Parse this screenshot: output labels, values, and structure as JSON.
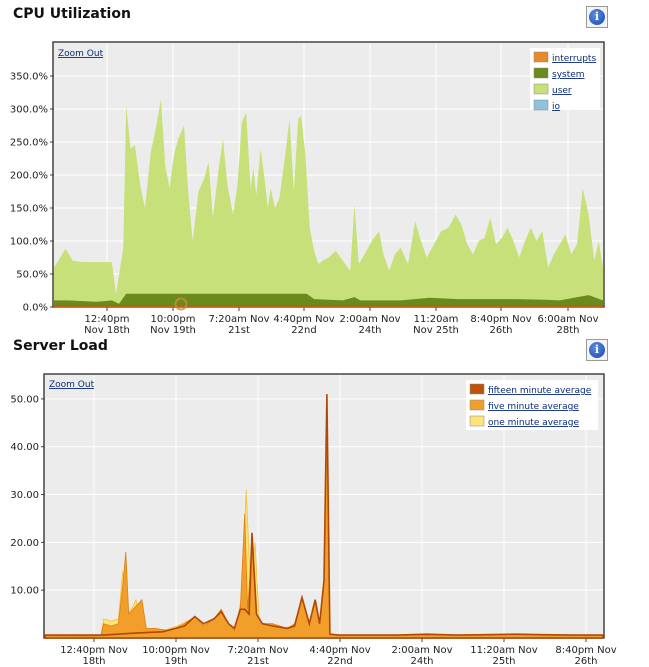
{
  "cpu": {
    "title": "CPU Utilization",
    "zoom_label": "Zoom Out",
    "info_icon": "info-icon"
  },
  "load": {
    "title": "Server Load",
    "zoom_label": "Zoom Out",
    "info_icon": "info-icon"
  },
  "chart_data": [
    {
      "type": "area",
      "title": "CPU Utilization",
      "ylim": [
        0,
        400
      ],
      "y_ticks": [
        "0.0%",
        "50.0%",
        "100.0%",
        "150.0%",
        "200.0%",
        "250.0%",
        "300.0%",
        "350.0%"
      ],
      "x_ticks": [
        [
          "12:40pm",
          "Nov 18th"
        ],
        [
          "10:00pm",
          "Nov 19th"
        ],
        [
          "7:20am Nov",
          "21st"
        ],
        [
          "4:40pm Nov",
          "22nd"
        ],
        [
          "2:00am Nov",
          "24th"
        ],
        [
          "11:20am",
          "Nov 25th"
        ],
        [
          "8:40pm Nov",
          "26th"
        ],
        [
          "6:00am Nov",
          "28th"
        ]
      ],
      "grid": true,
      "legend_position": "top-right",
      "stacked": true,
      "series": [
        {
          "name": "interrupts",
          "color": "#e8892a"
        },
        {
          "name": "system",
          "color": "#6b8a1e"
        },
        {
          "name": "user",
          "color": "#c8e07a"
        },
        {
          "name": "io",
          "color": "#8ec3dc"
        }
      ],
      "user_total": [
        [
          0,
          60
        ],
        [
          0.8,
          88
        ],
        [
          1.3,
          70
        ],
        [
          2,
          68
        ],
        [
          4,
          68
        ],
        [
          4.3,
          20
        ],
        [
          4.8,
          90
        ],
        [
          5,
          305
        ],
        [
          5.3,
          240
        ],
        [
          5.6,
          245
        ],
        [
          6,
          180
        ],
        [
          6.3,
          150
        ],
        [
          6.7,
          235
        ],
        [
          7,
          265
        ],
        [
          7.4,
          315
        ],
        [
          7.7,
          215
        ],
        [
          8,
          180
        ],
        [
          8.3,
          230
        ],
        [
          8.6,
          255
        ],
        [
          9,
          275
        ],
        [
          9.3,
          170
        ],
        [
          9.6,
          100
        ],
        [
          10,
          175
        ],
        [
          10.4,
          195
        ],
        [
          10.7,
          220
        ],
        [
          11,
          135
        ],
        [
          11.4,
          210
        ],
        [
          11.7,
          255
        ],
        [
          12,
          185
        ],
        [
          12.4,
          140
        ],
        [
          12.7,
          185
        ],
        [
          13,
          280
        ],
        [
          13.3,
          295
        ],
        [
          13.6,
          180
        ],
        [
          13.8,
          210
        ],
        [
          14,
          170
        ],
        [
          14.3,
          240
        ],
        [
          14.6,
          190
        ],
        [
          14.8,
          150
        ],
        [
          15,
          180
        ],
        [
          15.3,
          150
        ],
        [
          15.6,
          165
        ],
        [
          16,
          230
        ],
        [
          16.3,
          285
        ],
        [
          16.6,
          175
        ],
        [
          16.9,
          285
        ],
        [
          17.1,
          290
        ],
        [
          17.4,
          230
        ],
        [
          17.7,
          120
        ],
        [
          18,
          85
        ],
        [
          18.3,
          65
        ],
        [
          18.6,
          70
        ],
        [
          19,
          75
        ],
        [
          19.5,
          85
        ],
        [
          20,
          70
        ],
        [
          20.5,
          55
        ],
        [
          20.8,
          155
        ],
        [
          21.1,
          65
        ],
        [
          21.5,
          80
        ],
        [
          22,
          100
        ],
        [
          22.5,
          115
        ],
        [
          22.8,
          80
        ],
        [
          23.2,
          55
        ],
        [
          23.6,
          80
        ],
        [
          24,
          90
        ],
        [
          24.5,
          65
        ],
        [
          25,
          130
        ],
        [
          25.4,
          100
        ],
        [
          25.8,
          75
        ],
        [
          26.3,
          95
        ],
        [
          26.8,
          115
        ],
        [
          27.3,
          120
        ],
        [
          27.8,
          140
        ],
        [
          28.2,
          125
        ],
        [
          28.6,
          95
        ],
        [
          29,
          80
        ],
        [
          29.4,
          100
        ],
        [
          29.8,
          105
        ],
        [
          30.2,
          135
        ],
        [
          30.6,
          95
        ],
        [
          31,
          105
        ],
        [
          31.4,
          120
        ],
        [
          31.8,
          100
        ],
        [
          32.2,
          75
        ],
        [
          32.6,
          100
        ],
        [
          33,
          120
        ],
        [
          33.4,
          100
        ],
        [
          33.8,
          115
        ],
        [
          34.2,
          60
        ],
        [
          34.6,
          80
        ],
        [
          35,
          95
        ],
        [
          35.4,
          110
        ],
        [
          35.8,
          80
        ],
        [
          36.2,
          95
        ],
        [
          36.6,
          180
        ],
        [
          37,
          140
        ],
        [
          37.4,
          70
        ],
        [
          37.7,
          100
        ],
        [
          38,
          60
        ]
      ],
      "system_total": [
        [
          0,
          10
        ],
        [
          1,
          10
        ],
        [
          2,
          9
        ],
        [
          3,
          8
        ],
        [
          4,
          10
        ],
        [
          4.5,
          5
        ],
        [
          5,
          20
        ],
        [
          8,
          20
        ],
        [
          12,
          20
        ],
        [
          16,
          20
        ],
        [
          17.5,
          20
        ],
        [
          18,
          12
        ],
        [
          20,
          10
        ],
        [
          20.8,
          15
        ],
        [
          21.2,
          10
        ],
        [
          24,
          10
        ],
        [
          26,
          14
        ],
        [
          28,
          12
        ],
        [
          30,
          12
        ],
        [
          32,
          12
        ],
        [
          34,
          11
        ],
        [
          35,
          10
        ],
        [
          36,
          14
        ],
        [
          37,
          18
        ],
        [
          38,
          10
        ]
      ],
      "interrupts_total": [
        [
          0,
          2
        ],
        [
          38,
          2
        ]
      ]
    },
    {
      "type": "area",
      "title": "Server Load",
      "ylim": [
        0,
        55
      ],
      "y_ticks": [
        "10.00",
        "20.00",
        "30.00",
        "40.00",
        "50.00"
      ],
      "x_ticks": [
        [
          "12:40pm Nov",
          "18th"
        ],
        [
          "10:00pm Nov",
          "19th"
        ],
        [
          "7:20am Nov",
          "21st"
        ],
        [
          "4:40pm Nov",
          "22nd"
        ],
        [
          "2:00am Nov",
          "24th"
        ],
        [
          "11:20am Nov",
          "25th"
        ],
        [
          "8:40pm Nov",
          "26th"
        ]
      ],
      "grid": true,
      "legend_position": "top-right",
      "series": [
        {
          "name": "fifteen minute average",
          "color": "#c0520a"
        },
        {
          "name": "five minute average",
          "color": "#f29e2a"
        },
        {
          "name": "one minute average",
          "color": "#fde37a"
        }
      ],
      "one_minute": [
        [
          0,
          0.5
        ],
        [
          3,
          0.4
        ],
        [
          3.8,
          0.5
        ],
        [
          4,
          4
        ],
        [
          4.5,
          3.5
        ],
        [
          5,
          4
        ],
        [
          5.3,
          14
        ],
        [
          5.6,
          5
        ],
        [
          5.9,
          6
        ],
        [
          6.2,
          8
        ],
        [
          6.5,
          2
        ],
        [
          7,
          2
        ],
        [
          8,
          1.5
        ],
        [
          9,
          2.5
        ],
        [
          10,
          4
        ],
        [
          11,
          2.5
        ],
        [
          12,
          5
        ],
        [
          12.5,
          3
        ],
        [
          13,
          2
        ],
        [
          13.4,
          9
        ],
        [
          13.7,
          31
        ],
        [
          14,
          10
        ],
        [
          14.3,
          20
        ],
        [
          14.6,
          3
        ],
        [
          15,
          3
        ],
        [
          16,
          2
        ],
        [
          17,
          2.5
        ],
        [
          17.5,
          7
        ],
        [
          18,
          3
        ],
        [
          18.5,
          6
        ],
        [
          18.7,
          3
        ],
        [
          19,
          8
        ],
        [
          19.3,
          14
        ],
        [
          19.4,
          0.5
        ],
        [
          20,
          0.5
        ],
        [
          24,
          0.5
        ],
        [
          28,
          0.5
        ],
        [
          32,
          0.7
        ],
        [
          36,
          0.5
        ],
        [
          38,
          0.5
        ]
      ],
      "five_minute": [
        [
          0,
          0.5
        ],
        [
          3,
          0.4
        ],
        [
          3.8,
          0.5
        ],
        [
          4,
          3
        ],
        [
          4.5,
          2.5
        ],
        [
          5,
          3
        ],
        [
          5.3,
          11
        ],
        [
          5.5,
          18
        ],
        [
          5.7,
          5
        ],
        [
          6,
          6
        ],
        [
          6.3,
          7
        ],
        [
          6.6,
          8
        ],
        [
          6.9,
          2
        ],
        [
          7.5,
          2
        ],
        [
          8.5,
          1.5
        ],
        [
          9.5,
          3
        ],
        [
          10.2,
          4.5
        ],
        [
          10.8,
          2.5
        ],
        [
          11.5,
          4
        ],
        [
          12,
          6
        ],
        [
          12.5,
          3
        ],
        [
          12.9,
          1.5
        ],
        [
          13.3,
          6
        ],
        [
          13.6,
          26
        ],
        [
          13.8,
          6
        ],
        [
          14.1,
          19
        ],
        [
          14.4,
          5
        ],
        [
          14.8,
          3
        ],
        [
          15.5,
          3
        ],
        [
          16.5,
          2
        ],
        [
          17,
          3
        ],
        [
          17.5,
          8.5
        ],
        [
          18,
          3
        ],
        [
          18.4,
          8
        ],
        [
          18.7,
          3
        ],
        [
          19,
          12
        ],
        [
          19.2,
          51
        ],
        [
          19.4,
          0.8
        ],
        [
          20,
          0.6
        ],
        [
          24,
          0.6
        ],
        [
          28,
          0.6
        ],
        [
          32,
          0.8
        ],
        [
          36,
          0.6
        ],
        [
          38,
          0.6
        ]
      ],
      "fifteen_minute": [
        [
          0,
          0.6
        ],
        [
          4,
          0.6
        ],
        [
          6,
          1
        ],
        [
          8,
          1.3
        ],
        [
          9.5,
          2.5
        ],
        [
          10.2,
          4.5
        ],
        [
          10.8,
          3
        ],
        [
          11.5,
          4
        ],
        [
          12,
          5.5
        ],
        [
          12.5,
          3
        ],
        [
          12.9,
          2
        ],
        [
          13.3,
          6
        ],
        [
          13.6,
          6
        ],
        [
          13.9,
          5
        ],
        [
          14.1,
          22
        ],
        [
          14.4,
          5
        ],
        [
          14.8,
          3
        ],
        [
          15.5,
          2.5
        ],
        [
          16.5,
          2
        ],
        [
          17,
          2.5
        ],
        [
          17.5,
          8.5
        ],
        [
          18,
          3
        ],
        [
          18.4,
          8
        ],
        [
          18.7,
          3
        ],
        [
          19,
          12
        ],
        [
          19.2,
          51
        ],
        [
          19.4,
          0.8
        ],
        [
          20,
          0.6
        ],
        [
          24,
          0.6
        ],
        [
          26,
          0.8
        ],
        [
          28,
          0.6
        ],
        [
          30,
          0.7
        ],
        [
          32,
          0.8
        ],
        [
          34,
          0.7
        ],
        [
          36,
          0.6
        ],
        [
          38,
          0.6
        ]
      ]
    }
  ]
}
